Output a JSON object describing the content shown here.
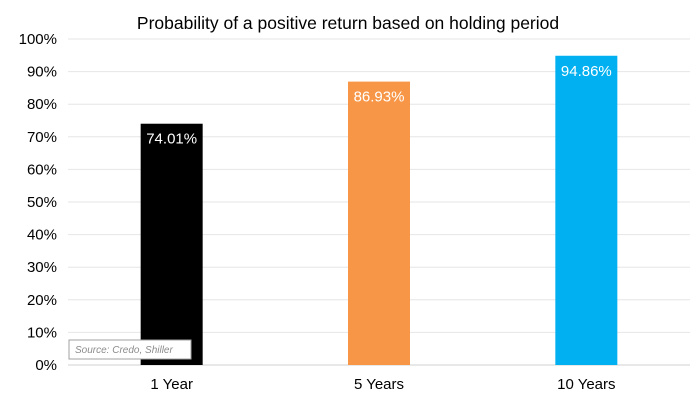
{
  "chart_data": {
    "type": "bar",
    "title": "Probability of a positive return based on holding period",
    "categories": [
      "1 Year",
      "5 Years",
      "10 Years"
    ],
    "values": [
      74.01,
      86.93,
      94.86
    ],
    "value_labels": [
      "74.01%",
      "86.93%",
      "94.86%"
    ],
    "colors": [
      "#000000",
      "#f79646",
      "#00b0f0"
    ],
    "ylim": [
      0,
      100
    ],
    "yticks": [
      0,
      10,
      20,
      30,
      40,
      50,
      60,
      70,
      80,
      90,
      100
    ],
    "ytick_labels": [
      "0%",
      "10%",
      "20%",
      "30%",
      "40%",
      "50%",
      "60%",
      "70%",
      "80%",
      "90%",
      "100%"
    ],
    "xlabel": "",
    "ylabel": "",
    "grid": true,
    "legend": "none"
  },
  "source_note": "Source: Credo, Shiller"
}
